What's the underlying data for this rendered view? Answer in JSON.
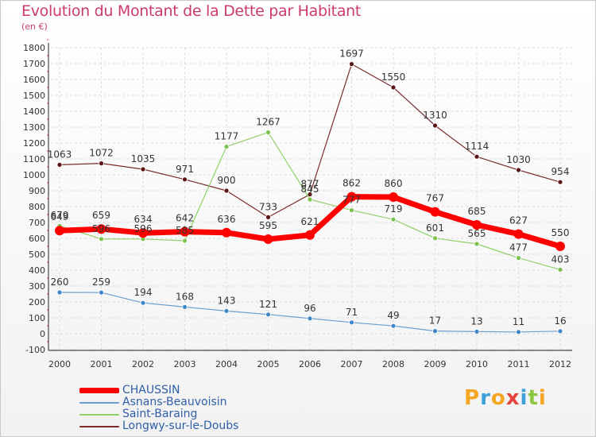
{
  "title": "Evolution du Montant de la Dette par Habitant",
  "subtitle": "(en €)",
  "logo": {
    "text": "Proxiti",
    "colors": [
      "#f5a623",
      "#3fa0d8",
      "#f5a623",
      "#e5443a",
      "#3fa0d8",
      "#8cc63f",
      "#f5a623"
    ]
  },
  "chart_data": {
    "type": "line",
    "title": "Evolution du Montant de la Dette par Habitant",
    "ylabel": "(en €)",
    "ylim": [
      -100,
      1800
    ],
    "yticks": [
      "-100",
      "0",
      "100",
      "200",
      "300",
      "400",
      "500",
      "600",
      "700",
      "800",
      "900",
      "1000",
      "1100",
      "1200",
      "1300",
      "1400",
      "1500",
      "1600",
      "1700",
      "1800"
    ],
    "categories": [
      "2000",
      "2001",
      "2002",
      "2003",
      "2004",
      "2005",
      "2006",
      "2007",
      "2008",
      "2009",
      "2010",
      "2011",
      "2012"
    ],
    "grid": true,
    "series": [
      {
        "name": "Longwy-sur-le-Doubs",
        "color": "#7b2b2b",
        "marker": "#5a1616",
        "width": 1.2,
        "radius": 3,
        "values": [
          1063,
          1072,
          1035,
          971,
          900,
          733,
          877,
          1697,
          1550,
          1310,
          1114,
          1030,
          954
        ]
      },
      {
        "name": "Saint-Baraing",
        "color": "#8fd068",
        "marker": "#7cc24e",
        "width": 1.2,
        "radius": 3,
        "values": [
          679,
          596,
          596,
          585,
          1177,
          1267,
          845,
          777,
          719,
          601,
          565,
          477,
          403
        ]
      },
      {
        "name": "Asnans-Beauvoisin",
        "color": "#6a9ed0",
        "marker": "#3d86c8",
        "width": 1.2,
        "radius": 3,
        "values": [
          260,
          259,
          194,
          168,
          143,
          121,
          96,
          71,
          49,
          17,
          13,
          11,
          16
        ]
      },
      {
        "name": "CHAUSSIN",
        "color": "#ff0000",
        "marker": "#ff0000",
        "width": 7,
        "radius": 6,
        "values": [
          649,
          659,
          634,
          642,
          636,
          595,
          621,
          862,
          860,
          767,
          685,
          627,
          550
        ]
      }
    ],
    "legend": [
      {
        "name": "CHAUSSIN",
        "color": "#ff0000",
        "thickness": 7
      },
      {
        "name": "Asnans-Beauvoisin",
        "color": "#6a9ed0",
        "thickness": 2
      },
      {
        "name": "Saint-Baraing",
        "color": "#8fd068",
        "thickness": 2
      },
      {
        "name": "Longwy-sur-le-Doubs",
        "color": "#7b2b2b",
        "thickness": 2
      }
    ]
  }
}
